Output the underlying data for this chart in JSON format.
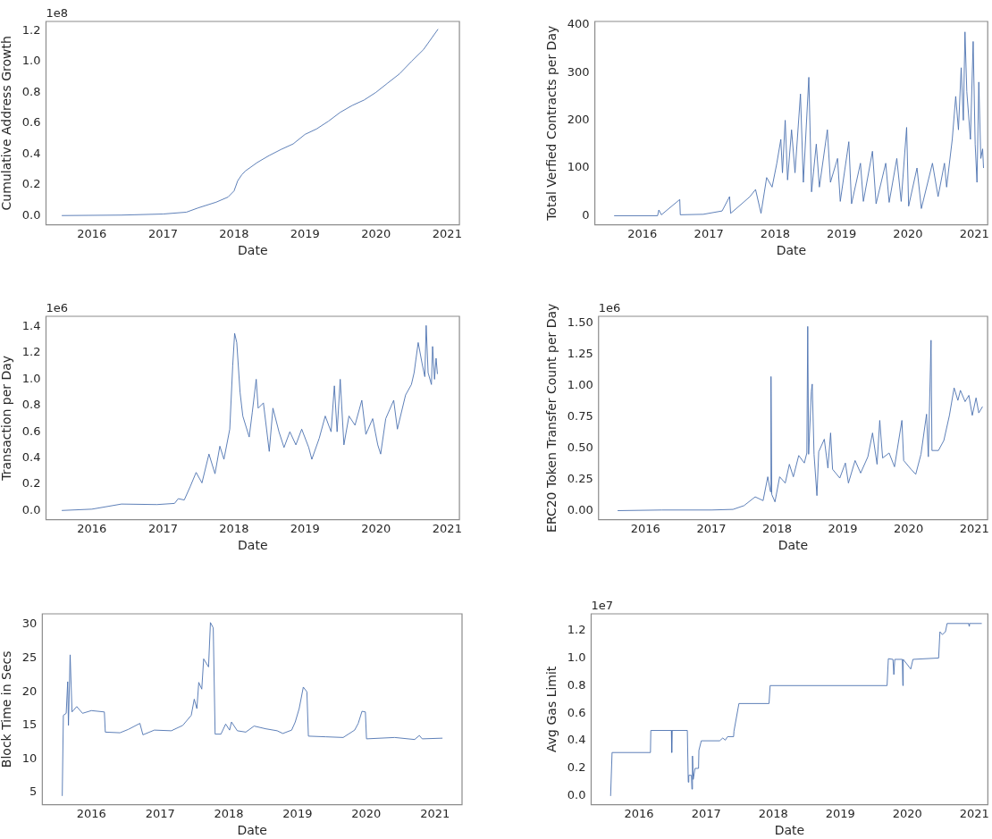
{
  "chart_data": [
    {
      "type": "line",
      "xlabel": "Date",
      "ylabel": "Cumulative Address Growth",
      "annotations": [
        "1e8"
      ],
      "legend": false,
      "grid": false,
      "xlim": [
        "2015-05-10",
        "2021-03-05"
      ],
      "xticks": [
        "2016",
        "2017",
        "2018",
        "2019",
        "2020",
        "2021"
      ],
      "ylim": [
        -0.06,
        1.26
      ],
      "yticks": [
        {
          "value": 0,
          "label": "0.0"
        },
        {
          "value": 0.2,
          "label": "0.2"
        },
        {
          "value": 0.4,
          "label": "0.4"
        },
        {
          "value": 0.6,
          "label": "0.6"
        },
        {
          "value": 0.8,
          "label": "0.8"
        },
        {
          "value": 1,
          "label": "1.0"
        },
        {
          "value": 1.2,
          "label": "1.2"
        }
      ],
      "x": [
        "2015-07-30",
        "2016-06-01",
        "2017-01-01",
        "2017-05-01",
        "2017-07-01",
        "2017-10-01",
        "2017-12-01",
        "2018-01-01",
        "2018-01-20",
        "2018-02-10",
        "2018-03-01",
        "2018-05-01",
        "2018-07-01",
        "2018-09-01",
        "2018-11-01",
        "2019-01-01",
        "2019-03-01",
        "2019-05-01",
        "2019-07-01",
        "2019-09-01",
        "2019-11-01",
        "2020-01-01",
        "2020-03-01",
        "2020-05-01",
        "2020-07-01",
        "2020-09-01",
        "2020-11-15"
      ],
      "series": [
        {
          "color": "#4c72b0",
          "values": [
            0,
            0.003,
            0.01,
            0.022,
            0.05,
            0.087,
            0.12,
            0.16,
            0.226,
            0.265,
            0.29,
            0.345,
            0.39,
            0.43,
            0.465,
            0.527,
            0.562,
            0.612,
            0.67,
            0.715,
            0.75,
            0.8,
            0.86,
            0.92,
            1.0,
            1.077,
            1.21
          ]
        }
      ]
    },
    {
      "type": "line",
      "xlabel": "Date",
      "ylabel": "Total Verfied Contracts per Day",
      "legend": false,
      "grid": false,
      "xlim": [
        "2015-04-15",
        "2021-03-15"
      ],
      "xticks": [
        "2016",
        "2017",
        "2018",
        "2019",
        "2020",
        "2021"
      ],
      "ylim": [
        -19,
        407
      ],
      "yticks": [
        0,
        100,
        200,
        300,
        400
      ],
      "x": [
        "2015-07-30",
        "2016-03-25",
        "2016-04-01",
        "2016-04-15",
        "2016-07-25",
        "2016-07-28",
        "2016-12-01",
        "2017-03-15",
        "2017-04-25",
        "2017-05-01",
        "2017-07-01",
        "2017-08-15",
        "2017-09-15",
        "2017-10-15",
        "2017-11-15",
        "2017-12-15",
        "2018-01-10",
        "2018-02-01",
        "2018-02-10",
        "2018-02-25",
        "2018-03-10",
        "2018-04-01",
        "2018-04-20",
        "2018-05-20",
        "2018-06-05",
        "2018-07-05",
        "2018-07-20",
        "2018-08-15",
        "2018-09-01",
        "2018-10-15",
        "2018-11-01",
        "2018-12-10",
        "2018-12-25",
        "2019-02-10",
        "2019-02-25",
        "2019-04-15",
        "2019-05-01",
        "2019-06-20",
        "2019-07-10",
        "2019-09-01",
        "2019-09-20",
        "2019-11-01",
        "2019-11-25",
        "2019-12-25",
        "2020-01-05",
        "2020-02-20",
        "2020-03-15",
        "2020-05-15",
        "2020-06-15",
        "2020-07-20",
        "2020-08-01",
        "2020-09-01",
        "2020-09-20",
        "2020-10-05",
        "2020-10-20",
        "2020-11-01",
        "2020-11-10",
        "2020-11-20",
        "2020-12-10",
        "2020-12-25",
        "2021-01-05",
        "2021-01-15",
        "2021-01-25",
        "2021-02-05",
        "2021-02-15",
        "2021-02-20"
      ],
      "series": [
        {
          "color": "#4c72b0",
          "values": [
            0,
            0,
            12,
            2,
            34,
            2,
            3,
            10,
            40,
            5,
            25,
            40,
            55,
            5,
            80,
            60,
            110,
            160,
            90,
            200,
            75,
            180,
            90,
            255,
            70,
            290,
            50,
            150,
            60,
            180,
            70,
            120,
            30,
            155,
            25,
            110,
            30,
            135,
            25,
            110,
            28,
            120,
            30,
            185,
            20,
            100,
            15,
            110,
            40,
            110,
            60,
            160,
            250,
            180,
            310,
            200,
            385,
            260,
            160,
            365,
            150,
            70,
            280,
            120,
            140,
            100
          ]
        }
      ]
    },
    {
      "type": "line",
      "xlabel": "Date",
      "ylabel": "Transaction per Day",
      "annotations": [
        "1e6"
      ],
      "legend": false,
      "grid": false,
      "xlim": [
        "2015-05-10",
        "2021-03-05"
      ],
      "xticks": [
        "2016",
        "2017",
        "2018",
        "2019",
        "2020",
        "2021"
      ],
      "ylim": [
        -0.07,
        1.48
      ],
      "yticks": [
        {
          "value": 0,
          "label": "0.0"
        },
        {
          "value": 0.2,
          "label": "0.2"
        },
        {
          "value": 0.4,
          "label": "0.4"
        },
        {
          "value": 0.6,
          "label": "0.6"
        },
        {
          "value": 0.8,
          "label": "0.8"
        },
        {
          "value": 1,
          "label": "1.0"
        },
        {
          "value": 1.2,
          "label": "1.2"
        },
        {
          "value": 1.4,
          "label": "1.4"
        }
      ],
      "x": [
        "2015-07-30",
        "2016-01-01",
        "2016-06-01",
        "2016-12-01",
        "2017-03-01",
        "2017-03-20",
        "2017-04-20",
        "2017-05-20",
        "2017-06-20",
        "2017-07-20",
        "2017-08-25",
        "2017-09-25",
        "2017-10-20",
        "2017-11-10",
        "2017-12-10",
        "2017-12-25",
        "2018-01-04",
        "2018-01-15",
        "2018-02-01",
        "2018-02-15",
        "2018-03-20",
        "2018-04-05",
        "2018-04-25",
        "2018-05-05",
        "2018-06-01",
        "2018-07-01",
        "2018-07-20",
        "2018-08-20",
        "2018-09-15",
        "2018-10-15",
        "2018-11-15",
        "2018-12-15",
        "2019-01-20",
        "2019-02-05",
        "2019-03-15",
        "2019-04-15",
        "2019-05-15",
        "2019-06-01",
        "2019-06-15",
        "2019-07-01",
        "2019-07-20",
        "2019-08-15",
        "2019-09-15",
        "2019-10-20",
        "2019-11-10",
        "2019-12-15",
        "2020-01-10",
        "2020-01-25",
        "2020-02-20",
        "2020-04-01",
        "2020-04-20",
        "2020-06-01",
        "2020-07-01",
        "2020-07-15",
        "2020-08-05",
        "2020-08-25",
        "2020-09-08",
        "2020-09-15",
        "2020-09-25",
        "2020-10-12",
        "2020-10-18",
        "2020-10-28",
        "2020-11-05",
        "2020-11-12"
      ],
      "series": [
        {
          "color": "#4c72b0",
          "values": [
            0,
            0.01,
            0.049,
            0.045,
            0.054,
            0.09,
            0.08,
            0.18,
            0.29,
            0.21,
            0.43,
            0.28,
            0.49,
            0.39,
            0.62,
            1.1,
            1.35,
            1.28,
            0.9,
            0.72,
            0.56,
            0.75,
            1.0,
            0.78,
            0.82,
            0.45,
            0.78,
            0.6,
            0.48,
            0.6,
            0.5,
            0.62,
            0.48,
            0.39,
            0.55,
            0.72,
            0.6,
            0.95,
            0.6,
            1.0,
            0.5,
            0.72,
            0.65,
            0.84,
            0.58,
            0.7,
            0.5,
            0.43,
            0.7,
            0.84,
            0.62,
            0.88,
            0.96,
            1.05,
            1.28,
            1.12,
            1.02,
            1.41,
            1.05,
            0.96,
            1.25,
            1.0,
            1.16,
            1.04
          ]
        }
      ]
    },
    {
      "type": "line",
      "xlabel": "Date",
      "ylabel": "ERC20 Token Transfer Count per Day",
      "annotations": [
        "1e6"
      ],
      "legend": false,
      "grid": false,
      "xlim": [
        "2015-04-15",
        "2021-03-15"
      ],
      "xticks": [
        "2016",
        "2017",
        "2018",
        "2019",
        "2020",
        "2021"
      ],
      "ylim": [
        -0.072,
        1.551
      ],
      "yticks": [
        {
          "value": 0,
          "label": "0.00"
        },
        {
          "value": 0.25,
          "label": "0.25"
        },
        {
          "value": 0.5,
          "label": "0.50"
        },
        {
          "value": 0.75,
          "label": "0.75"
        },
        {
          "value": 1,
          "label": "1.00"
        },
        {
          "value": 1.25,
          "label": "1.25"
        },
        {
          "value": 1.5,
          "label": "1.50"
        }
      ],
      "x": [
        "2015-07-30",
        "2016-04-01",
        "2017-01-01",
        "2017-05-01",
        "2017-07-01",
        "2017-09-01",
        "2017-10-15",
        "2017-11-10",
        "2017-11-25",
        "2017-11-28",
        "2017-12-02",
        "2017-12-20",
        "2018-01-15",
        "2018-02-15",
        "2018-03-10",
        "2018-04-01",
        "2018-05-01",
        "2018-06-01",
        "2018-06-15",
        "2018-06-20",
        "2018-06-25",
        "2018-07-10",
        "2018-07-15",
        "2018-07-25",
        "2018-08-10",
        "2018-08-20",
        "2018-09-20",
        "2018-10-10",
        "2018-10-25",
        "2018-11-05",
        "2018-12-15",
        "2019-01-15",
        "2019-02-01",
        "2019-03-10",
        "2019-04-10",
        "2019-05-20",
        "2019-06-15",
        "2019-07-10",
        "2019-07-25",
        "2019-08-10",
        "2019-09-15",
        "2019-10-15",
        "2019-11-25",
        "2019-12-05",
        "2020-01-15",
        "2020-02-10",
        "2020-03-10",
        "2020-04-10",
        "2020-04-20",
        "2020-05-05",
        "2020-05-10",
        "2020-06-15",
        "2020-07-15",
        "2020-08-15",
        "2020-09-10",
        "2020-10-01",
        "2020-10-15",
        "2020-11-10",
        "2020-12-01",
        "2020-12-20",
        "2021-01-10",
        "2021-01-25",
        "2021-02-15"
      ],
      "series": [
        {
          "color": "#4c72b0",
          "values": [
            0,
            0.005,
            0.005,
            0.01,
            0.04,
            0.11,
            0.08,
            0.27,
            0.15,
            1.07,
            0.13,
            0.07,
            0.27,
            0.22,
            0.37,
            0.27,
            0.44,
            0.38,
            0.46,
            1.47,
            0.45,
            0.95,
            1.01,
            0.45,
            0.12,
            0.47,
            0.57,
            0.34,
            0.62,
            0.33,
            0.26,
            0.38,
            0.22,
            0.4,
            0.3,
            0.43,
            0.62,
            0.37,
            0.72,
            0.42,
            0.46,
            0.35,
            0.72,
            0.4,
            0.33,
            0.29,
            0.45,
            0.77,
            0.43,
            1.36,
            0.48,
            0.48,
            0.56,
            0.76,
            0.98,
            0.88,
            0.96,
            0.87,
            0.92,
            0.76,
            0.9,
            0.78,
            0.83
          ]
        }
      ]
    },
    {
      "type": "line",
      "xlabel": "Date",
      "ylabel": "Block Time in Secs",
      "legend": false,
      "grid": false,
      "xlim": [
        "2015-04-15",
        "2021-05-25"
      ],
      "xticks": [
        "2016",
        "2017",
        "2018",
        "2019",
        "2020",
        "2021"
      ],
      "ylim": [
        3.2,
        31.6
      ],
      "yticks": [
        5,
        10,
        15,
        20,
        25,
        30
      ],
      "x": [
        "2015-07-30",
        "2015-08-05",
        "2015-08-20",
        "2015-08-28",
        "2015-09-01",
        "2015-09-10",
        "2015-09-20",
        "2015-10-15",
        "2015-11-15",
        "2016-01-01",
        "2016-03-10",
        "2016-03-15",
        "2016-06-01",
        "2016-07-15",
        "2016-09-15",
        "2016-10-01",
        "2016-12-01",
        "2017-03-01",
        "2017-05-01",
        "2017-06-15",
        "2017-07-01",
        "2017-07-15",
        "2017-07-25",
        "2017-08-10",
        "2017-08-20",
        "2017-09-15",
        "2017-09-25",
        "2017-10-10",
        "2017-10-20",
        "2017-11-20",
        "2017-12-15",
        "2018-01-05",
        "2018-01-15",
        "2018-02-15",
        "2018-04-01",
        "2018-05-15",
        "2018-07-15",
        "2018-09-15",
        "2018-10-15",
        "2018-12-01",
        "2018-12-20",
        "2019-01-10",
        "2019-02-01",
        "2019-02-20",
        "2019-02-28",
        "2019-06-01",
        "2019-09-01",
        "2019-11-01",
        "2019-11-20",
        "2019-12-10",
        "2019-12-28",
        "2020-01-03",
        "2020-06-01",
        "2020-09-15",
        "2020-10-10",
        "2020-10-25",
        "2021-02-10"
      ],
      "series": [
        {
          "color": "#4c72b0",
          "values": [
            4.5,
            16.5,
            16.8,
            21.5,
            15,
            25.5,
            17,
            17.8,
            16.8,
            17.2,
            17,
            14,
            13.9,
            14.4,
            15.3,
            13.6,
            14.3,
            14.2,
            15,
            16.5,
            18.9,
            17.5,
            21.4,
            20.4,
            24.9,
            23.7,
            30.3,
            29.5,
            13.7,
            13.7,
            15.2,
            14.3,
            15.5,
            14.2,
            14,
            14.9,
            14.5,
            14.2,
            13.8,
            14.3,
            15.5,
            17.5,
            20.7,
            20,
            13.4,
            13.3,
            13.2,
            14.3,
            15.3,
            17.1,
            17,
            13,
            13.2,
            12.9,
            13.5,
            13,
            13.1
          ]
        }
      ]
    },
    {
      "type": "line",
      "xlabel": "Date",
      "ylabel": "Avg Gas Limit",
      "annotations": [
        "1e7"
      ],
      "legend": false,
      "grid": false,
      "xlim": [
        "2015-04-15",
        "2021-03-15"
      ],
      "xticks": [
        "2016",
        "2017",
        "2018",
        "2019",
        "2020",
        "2021"
      ],
      "ylim": [
        -0.063,
        1.32
      ],
      "yticks": [
        {
          "value": 0,
          "label": "0.0"
        },
        {
          "value": 0.2,
          "label": "0.2"
        },
        {
          "value": 0.4,
          "label": "0.4"
        },
        {
          "value": 0.6,
          "label": "0.6"
        },
        {
          "value": 0.8,
          "label": "0.8"
        },
        {
          "value": 1,
          "label": "1.0"
        },
        {
          "value": 1.2,
          "label": "1.2"
        }
      ],
      "x": [
        "2015-07-30",
        "2015-08-07",
        "2016-03-03",
        "2016-03-05",
        "2016-06-25",
        "2016-06-27",
        "2016-06-29",
        "2016-09-20",
        "2016-09-25",
        "2016-09-28",
        "2016-10-12",
        "2016-10-15",
        "2016-10-18",
        "2016-10-22",
        "2016-11-01",
        "2016-11-20",
        "2016-11-22",
        "2016-12-05",
        "2017-03-15",
        "2017-04-01",
        "2017-04-15",
        "2017-04-27",
        "2017-05-30",
        "2017-06-01",
        "2017-06-28",
        "2017-12-09",
        "2017-12-15",
        "2019-09-13",
        "2019-09-20",
        "2019-10-15",
        "2019-10-20",
        "2019-10-25",
        "2019-12-05",
        "2019-12-08",
        "2019-12-10",
        "2020-01-20",
        "2020-02-01",
        "2020-06-20",
        "2020-06-27",
        "2020-07-10",
        "2020-07-27",
        "2020-08-05",
        "2020-12-01",
        "2020-12-03",
        "2020-12-05",
        "2021-02-10"
      ],
      "series": [
        {
          "color": "#4c72b0",
          "values": [
            0,
            0.315,
            0.315,
            0.475,
            0.475,
            0.315,
            0.475,
            0.475,
            0.1,
            0.15,
            0.15,
            0.05,
            0.29,
            0.12,
            0.2,
            0.2,
            0.33,
            0.4,
            0.4,
            0.42,
            0.405,
            0.43,
            0.43,
            0.47,
            0.67,
            0.67,
            0.8,
            0.8,
            0.995,
            0.99,
            0.88,
            0.99,
            0.99,
            0.8,
            0.99,
            0.92,
            0.99,
            1.0,
            1.19,
            1.17,
            1.19,
            1.25,
            1.25,
            1.23,
            1.25,
            1.25
          ]
        }
      ]
    }
  ]
}
